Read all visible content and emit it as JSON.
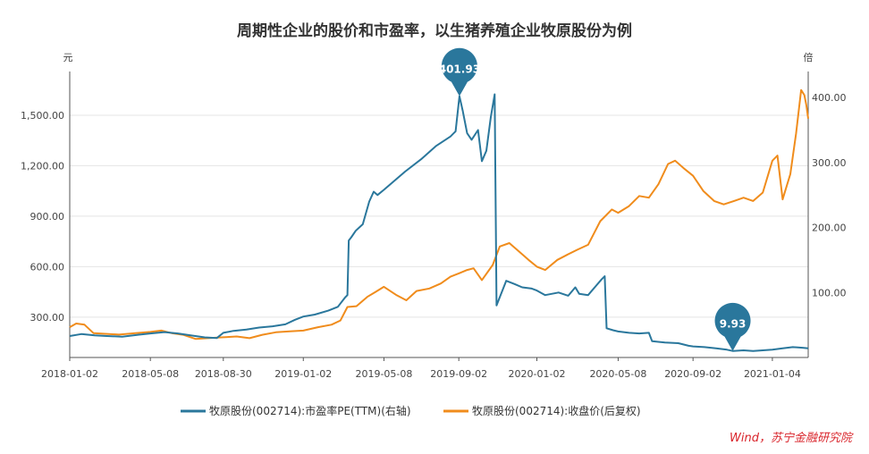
{
  "chart_data": {
    "type": "line",
    "title": "周期性企业的股价和市盈率，以生猪养殖企业牧原股份为例",
    "left_unit": "元",
    "right_unit": "倍",
    "x_ticks": [
      "2018-01-02",
      "2018-05-08",
      "2018-08-30",
      "2019-01-02",
      "2019-05-08",
      "2019-09-02",
      "2020-01-02",
      "2020-05-08",
      "2020-09-02",
      "2021-01-04"
    ],
    "left_axis": {
      "ticks": [
        "300.00",
        "600.00",
        "900.00",
        "1,200.00",
        "1,500.00"
      ],
      "tick_values": [
        300,
        600,
        900,
        1200,
        1500
      ],
      "range": [
        60,
        1760
      ]
    },
    "right_axis": {
      "ticks": [
        "100.00",
        "200.00",
        "300.00",
        "400.00"
      ],
      "tick_values": [
        100,
        200,
        300,
        400
      ],
      "range": [
        0,
        440
      ]
    },
    "annotations": [
      {
        "label": "401.93",
        "series": 0,
        "date": "2019-09-03"
      },
      {
        "label": "9.93",
        "series": 0,
        "date": "2020-11-03"
      }
    ],
    "series": [
      {
        "name": "牧原股份(002714):市盈率PE(TTM)(右轴)",
        "color": "#2a779c",
        "axis": "right",
        "points": [
          [
            "2018-01-02",
            33
          ],
          [
            "2018-01-20",
            36
          ],
          [
            "2018-02-10",
            34
          ],
          [
            "2018-03-01",
            33
          ],
          [
            "2018-03-25",
            32
          ],
          [
            "2018-04-20",
            35
          ],
          [
            "2018-05-08",
            37
          ],
          [
            "2018-05-30",
            39
          ],
          [
            "2018-06-20",
            37
          ],
          [
            "2018-07-10",
            34
          ],
          [
            "2018-08-01",
            31
          ],
          [
            "2018-08-20",
            30
          ],
          [
            "2018-08-30",
            38
          ],
          [
            "2018-09-15",
            41
          ],
          [
            "2018-10-05",
            43
          ],
          [
            "2018-10-25",
            46
          ],
          [
            "2018-11-15",
            48
          ],
          [
            "2018-12-05",
            51
          ],
          [
            "2018-12-20",
            58
          ],
          [
            "2019-01-02",
            63
          ],
          [
            "2019-01-20",
            66
          ],
          [
            "2019-02-10",
            72
          ],
          [
            "2019-02-25",
            78
          ],
          [
            "2019-03-08",
            92
          ],
          [
            "2019-03-12",
            96
          ],
          [
            "2019-03-14",
            180
          ],
          [
            "2019-03-18",
            185
          ],
          [
            "2019-03-25",
            195
          ],
          [
            "2019-04-05",
            205
          ],
          [
            "2019-04-15",
            240
          ],
          [
            "2019-04-22",
            255
          ],
          [
            "2019-04-28",
            250
          ],
          [
            "2019-05-08",
            258
          ],
          [
            "2019-06-10",
            286
          ],
          [
            "2019-07-05",
            305
          ],
          [
            "2019-07-28",
            325
          ],
          [
            "2019-08-20",
            340
          ],
          [
            "2019-08-28",
            348
          ],
          [
            "2019-09-03",
            402
          ],
          [
            "2019-09-08",
            380
          ],
          [
            "2019-09-15",
            345
          ],
          [
            "2019-09-22",
            335
          ],
          [
            "2019-10-02",
            350
          ],
          [
            "2019-10-08",
            302
          ],
          [
            "2019-10-15",
            318
          ],
          [
            "2019-10-22",
            370
          ],
          [
            "2019-10-28",
            405
          ],
          [
            "2019-10-31",
            80
          ],
          [
            "2019-11-15",
            118
          ],
          [
            "2019-11-28",
            113
          ],
          [
            "2019-12-10",
            108
          ],
          [
            "2019-12-25",
            106
          ],
          [
            "2020-01-02",
            103
          ],
          [
            "2020-01-15",
            96
          ],
          [
            "2020-02-05",
            100
          ],
          [
            "2020-02-20",
            95
          ],
          [
            "2020-03-02",
            108
          ],
          [
            "2020-03-08",
            98
          ],
          [
            "2020-03-22",
            96
          ],
          [
            "2020-04-05",
            112
          ],
          [
            "2020-04-12",
            120
          ],
          [
            "2020-04-17",
            125
          ],
          [
            "2020-04-20",
            45
          ],
          [
            "2020-04-30",
            42
          ],
          [
            "2020-05-08",
            40
          ],
          [
            "2020-05-25",
            38
          ],
          [
            "2020-06-10",
            37
          ],
          [
            "2020-06-25",
            38
          ],
          [
            "2020-06-30",
            25
          ],
          [
            "2020-07-20",
            23
          ],
          [
            "2020-08-10",
            22
          ],
          [
            "2020-08-26",
            18
          ],
          [
            "2020-09-02",
            17
          ],
          [
            "2020-09-20",
            16
          ],
          [
            "2020-10-08",
            14
          ],
          [
            "2020-10-25",
            12
          ],
          [
            "2020-11-03",
            10
          ],
          [
            "2020-11-20",
            11
          ],
          [
            "2020-12-05",
            10
          ],
          [
            "2020-12-20",
            11
          ],
          [
            "2021-01-04",
            12
          ],
          [
            "2021-01-20",
            14
          ],
          [
            "2021-02-05",
            16
          ],
          [
            "2021-02-20",
            15
          ],
          [
            "2021-03-01",
            14
          ]
        ]
      },
      {
        "name": "牧原股份(002714):收盘价(后复权)",
        "color": "#f08c1c",
        "axis": "left",
        "points": [
          [
            "2018-01-02",
            240
          ],
          [
            "2018-01-12",
            262
          ],
          [
            "2018-01-25",
            255
          ],
          [
            "2018-02-08",
            205
          ],
          [
            "2018-03-01",
            200
          ],
          [
            "2018-03-20",
            196
          ],
          [
            "2018-04-15",
            205
          ],
          [
            "2018-05-08",
            212
          ],
          [
            "2018-05-25",
            220
          ],
          [
            "2018-06-10",
            205
          ],
          [
            "2018-06-28",
            195
          ],
          [
            "2018-07-18",
            170
          ],
          [
            "2018-08-05",
            175
          ],
          [
            "2018-08-30",
            180
          ],
          [
            "2018-09-20",
            185
          ],
          [
            "2018-10-10",
            175
          ],
          [
            "2018-10-30",
            195
          ],
          [
            "2018-11-20",
            210
          ],
          [
            "2018-12-12",
            215
          ],
          [
            "2019-01-02",
            220
          ],
          [
            "2019-01-25",
            240
          ],
          [
            "2019-02-15",
            255
          ],
          [
            "2019-03-01",
            280
          ],
          [
            "2019-03-12",
            360
          ],
          [
            "2019-03-26",
            365
          ],
          [
            "2019-04-12",
            420
          ],
          [
            "2019-04-25",
            450
          ],
          [
            "2019-05-08",
            480
          ],
          [
            "2019-05-28",
            430
          ],
          [
            "2019-06-12",
            400
          ],
          [
            "2019-06-28",
            455
          ],
          [
            "2019-07-18",
            470
          ],
          [
            "2019-08-05",
            500
          ],
          [
            "2019-08-20",
            540
          ],
          [
            "2019-09-02",
            560
          ],
          [
            "2019-09-15",
            580
          ],
          [
            "2019-09-25",
            590
          ],
          [
            "2019-10-08",
            520
          ],
          [
            "2019-10-25",
            610
          ],
          [
            "2019-11-05",
            720
          ],
          [
            "2019-11-20",
            740
          ],
          [
            "2019-12-05",
            690
          ],
          [
            "2019-12-20",
            640
          ],
          [
            "2020-01-02",
            600
          ],
          [
            "2020-01-15",
            580
          ],
          [
            "2020-02-03",
            640
          ],
          [
            "2020-02-18",
            670
          ],
          [
            "2020-03-05",
            700
          ],
          [
            "2020-03-22",
            730
          ],
          [
            "2020-04-10",
            870
          ],
          [
            "2020-04-28",
            940
          ],
          [
            "2020-05-08",
            920
          ],
          [
            "2020-05-25",
            960
          ],
          [
            "2020-06-10",
            1020
          ],
          [
            "2020-06-25",
            1010
          ],
          [
            "2020-07-10",
            1090
          ],
          [
            "2020-07-25",
            1210
          ],
          [
            "2020-08-05",
            1230
          ],
          [
            "2020-08-20",
            1180
          ],
          [
            "2020-09-02",
            1140
          ],
          [
            "2020-09-18",
            1050
          ],
          [
            "2020-10-05",
            990
          ],
          [
            "2020-10-20",
            970
          ],
          [
            "2020-11-05",
            990
          ],
          [
            "2020-11-20",
            1010
          ],
          [
            "2020-12-05",
            990
          ],
          [
            "2020-12-20",
            1040
          ],
          [
            "2021-01-04",
            1230
          ],
          [
            "2021-01-12",
            1260
          ],
          [
            "2021-01-20",
            1000
          ],
          [
            "2021-02-01",
            1150
          ],
          [
            "2021-02-10",
            1390
          ],
          [
            "2021-02-18",
            1650
          ],
          [
            "2021-02-23",
            1620
          ],
          [
            "2021-02-26",
            1560
          ],
          [
            "2021-03-01",
            1480
          ]
        ]
      }
    ]
  },
  "source": "Wind，苏宁金融研究院"
}
